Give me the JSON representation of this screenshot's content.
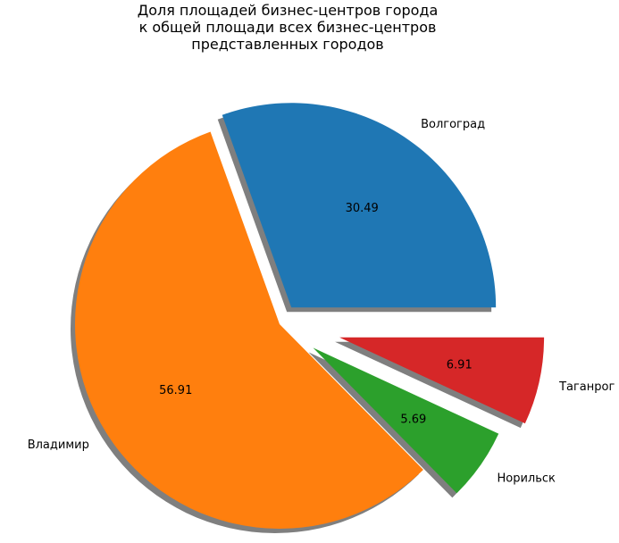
{
  "chart_data": {
    "type": "pie",
    "title": "Доля площадей бизнес-центров города\nк общей площади всех бизнес-центров\nпредставленных городов",
    "categories": [
      "Волгоград",
      "Владимир",
      "Норильск",
      "Таганрог"
    ],
    "values": [
      30.49,
      56.91,
      5.69,
      6.91
    ],
    "value_labels": [
      "30.49",
      "56.91",
      "5.69",
      "6.91"
    ],
    "explode": [
      0.1,
      0.0,
      0.2,
      0.3
    ],
    "shadow": true,
    "start_angle_deg": 0,
    "direction": "counterclockwise",
    "colors": [
      "#1f77b4",
      "#ff7f0e",
      "#2ca02c",
      "#d62728"
    ]
  }
}
